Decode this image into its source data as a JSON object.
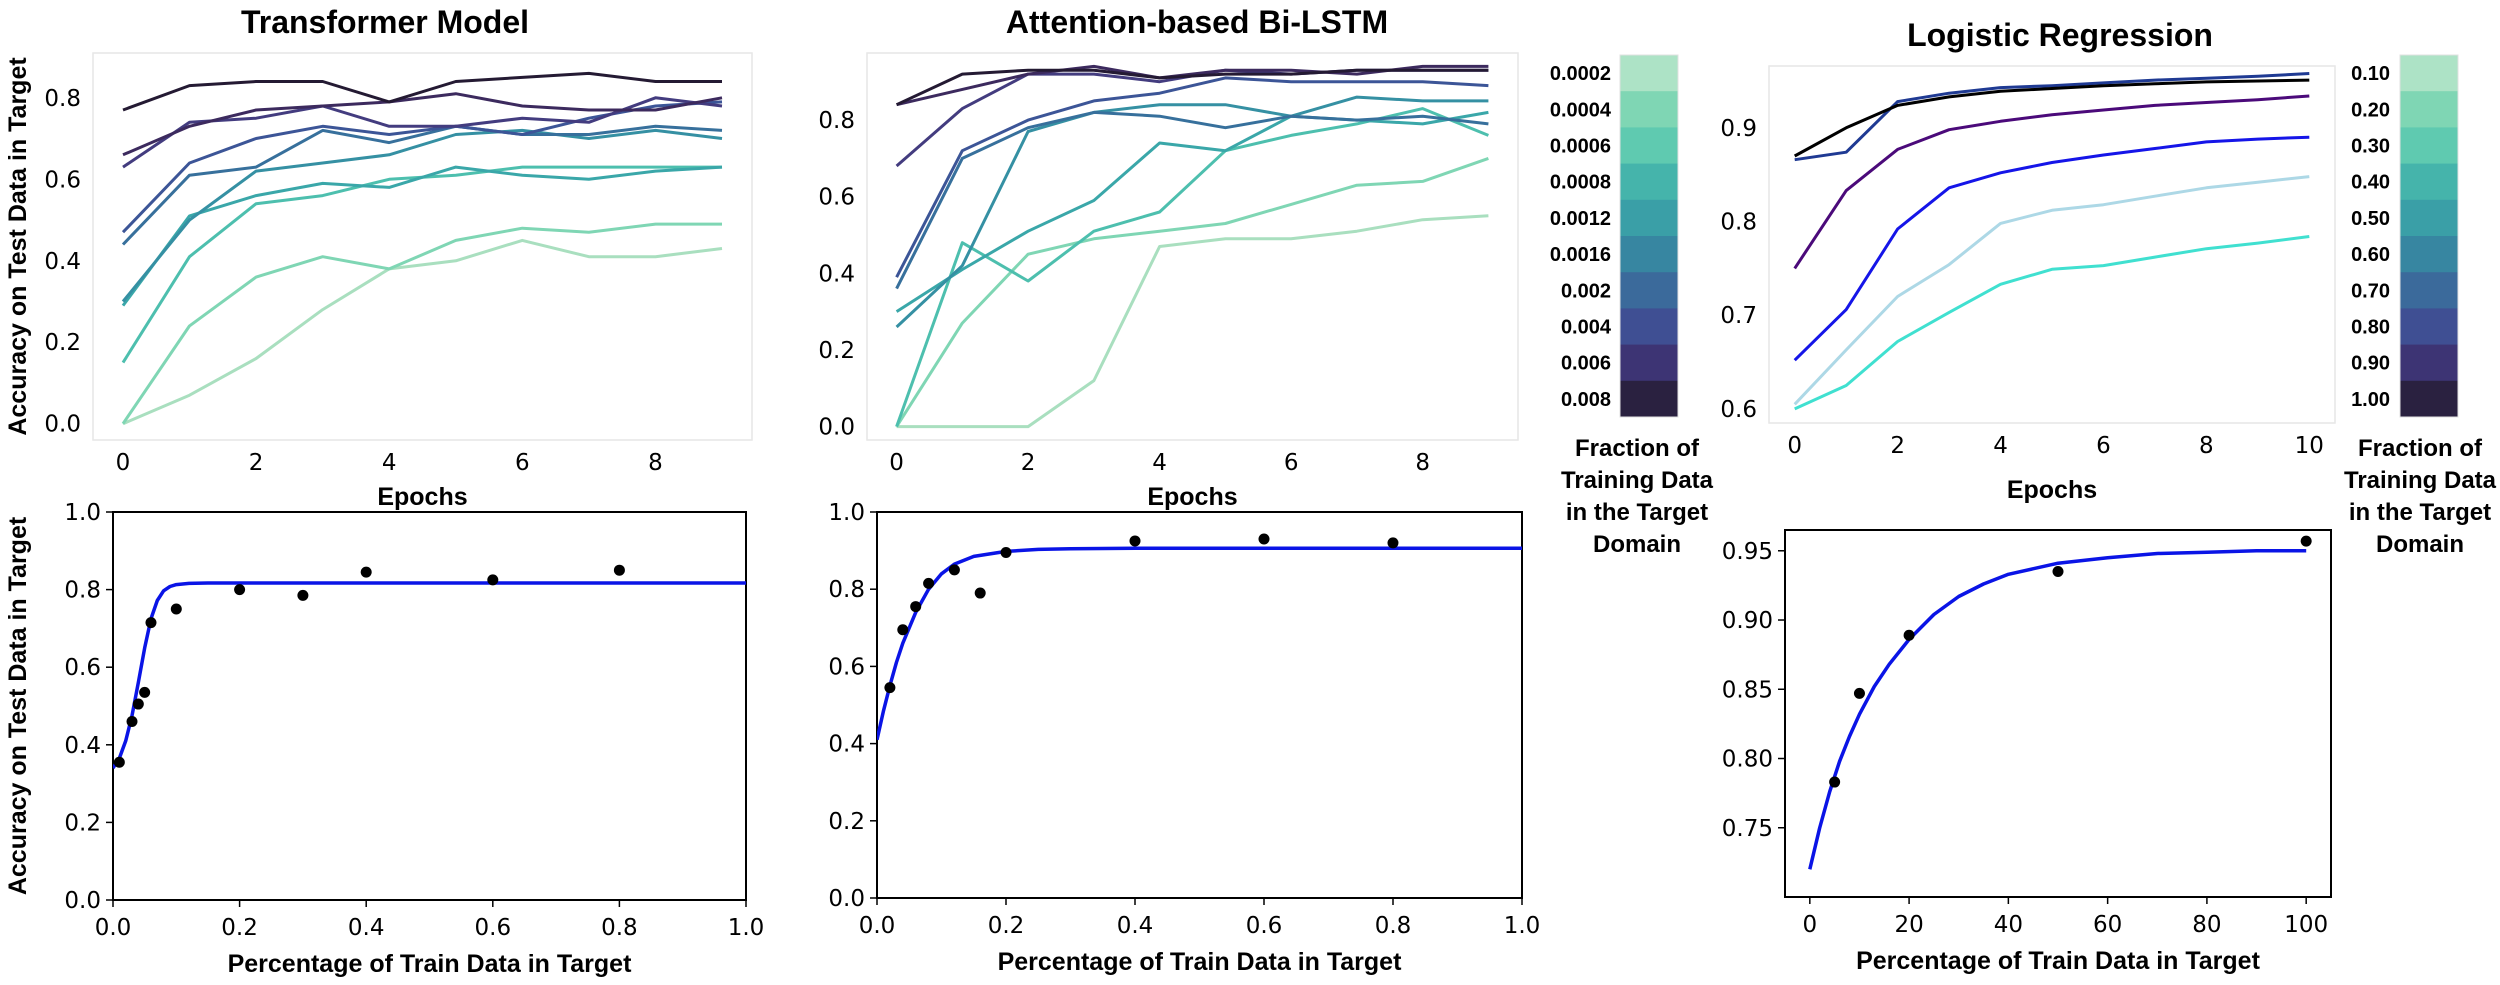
{
  "chart_data": [
    {
      "id": "p1",
      "type": "line",
      "title": "Transformer Model",
      "xlabel": "Epochs",
      "ylabel": "Accuracy on Test Data in Target",
      "xlim": [
        -0.45,
        9.45
      ],
      "ylim": [
        -0.04,
        0.91
      ],
      "xticks": [
        0,
        2,
        4,
        6,
        8
      ],
      "yticks": [
        0.0,
        0.2,
        0.4,
        0.6,
        0.8
      ],
      "ytick_labels": [
        "0.0",
        "0.2",
        "0.4",
        "0.6",
        "0.8"
      ],
      "x": [
        0,
        1,
        2,
        3,
        4,
        5,
        6,
        7,
        8,
        9
      ],
      "series": [
        {
          "values": [
            0.0,
            0.07,
            0.16,
            0.28,
            0.38,
            0.4,
            0.45,
            0.41,
            0.41,
            0.43
          ],
          "color": "#a9dfbf"
        },
        {
          "values": [
            0.0,
            0.24,
            0.36,
            0.41,
            0.38,
            0.45,
            0.48,
            0.47,
            0.49,
            0.49
          ],
          "color": "#7fd6b4"
        },
        {
          "values": [
            0.15,
            0.41,
            0.54,
            0.56,
            0.6,
            0.61,
            0.63,
            0.63,
            0.63,
            0.63
          ],
          "color": "#4dbfae"
        },
        {
          "values": [
            0.29,
            0.51,
            0.56,
            0.59,
            0.58,
            0.63,
            0.61,
            0.6,
            0.62,
            0.63
          ],
          "color": "#3aa7a9"
        },
        {
          "values": [
            0.3,
            0.5,
            0.62,
            0.64,
            0.66,
            0.71,
            0.72,
            0.7,
            0.72,
            0.7
          ],
          "color": "#3590a3"
        },
        {
          "values": [
            0.44,
            0.61,
            0.63,
            0.72,
            0.69,
            0.73,
            0.71,
            0.71,
            0.73,
            0.72
          ],
          "color": "#37709c"
        },
        {
          "values": [
            0.47,
            0.64,
            0.7,
            0.73,
            0.71,
            0.73,
            0.71,
            0.75,
            0.78,
            0.79
          ],
          "color": "#3c5597"
        },
        {
          "values": [
            0.63,
            0.74,
            0.75,
            0.78,
            0.73,
            0.73,
            0.75,
            0.74,
            0.8,
            0.78
          ],
          "color": "#433c7f"
        },
        {
          "values": [
            0.66,
            0.73,
            0.77,
            0.78,
            0.79,
            0.81,
            0.78,
            0.77,
            0.77,
            0.8
          ],
          "color": "#3c2a5e"
        },
        {
          "values": [
            0.77,
            0.83,
            0.84,
            0.84,
            0.79,
            0.84,
            0.85,
            0.86,
            0.84,
            0.84
          ],
          "color": "#241a33"
        }
      ]
    },
    {
      "id": "p2",
      "type": "line",
      "title": "Attention-based Bi-LSTM",
      "xlabel": "Epochs",
      "ylabel": "",
      "xlim": [
        -0.45,
        9.45
      ],
      "ylim": [
        -0.035,
        0.975
      ],
      "xticks": [
        0,
        2,
        4,
        6,
        8
      ],
      "yticks": [
        0.0,
        0.2,
        0.4,
        0.6,
        0.8
      ],
      "ytick_labels": [
        "0.0",
        "0.2",
        "0.4",
        "0.6",
        "0.8"
      ],
      "x": [
        0,
        1,
        2,
        3,
        4,
        5,
        6,
        7,
        8,
        9
      ],
      "series": [
        {
          "values": [
            0.0,
            0.0,
            0.0,
            0.12,
            0.47,
            0.49,
            0.49,
            0.51,
            0.54,
            0.55
          ],
          "color": "#a9dfbf"
        },
        {
          "values": [
            0.0,
            0.27,
            0.45,
            0.49,
            0.51,
            0.53,
            0.58,
            0.63,
            0.64,
            0.7
          ],
          "color": "#7fd6b4"
        },
        {
          "values": [
            0.0,
            0.48,
            0.38,
            0.51,
            0.56,
            0.72,
            0.76,
            0.79,
            0.83,
            0.76
          ],
          "color": "#4dbfae"
        },
        {
          "values": [
            0.3,
            0.41,
            0.51,
            0.59,
            0.74,
            0.72,
            0.81,
            0.8,
            0.79,
            0.82
          ],
          "color": "#3aa7a9"
        },
        {
          "values": [
            0.26,
            0.42,
            0.77,
            0.82,
            0.84,
            0.84,
            0.81,
            0.86,
            0.85,
            0.85
          ],
          "color": "#3590a3"
        },
        {
          "values": [
            0.36,
            0.7,
            0.78,
            0.82,
            0.81,
            0.78,
            0.81,
            0.8,
            0.81,
            0.79
          ],
          "color": "#37709c"
        },
        {
          "values": [
            0.39,
            0.72,
            0.8,
            0.85,
            0.87,
            0.91,
            0.9,
            0.9,
            0.9,
            0.89
          ],
          "color": "#3c5597"
        },
        {
          "values": [
            0.68,
            0.83,
            0.92,
            0.92,
            0.9,
            0.93,
            0.92,
            0.93,
            0.93,
            0.93
          ],
          "color": "#433c7f"
        },
        {
          "values": [
            0.84,
            0.88,
            0.92,
            0.94,
            0.91,
            0.93,
            0.93,
            0.92,
            0.94,
            0.94
          ],
          "color": "#3c2a5e"
        },
        {
          "values": [
            0.84,
            0.92,
            0.93,
            0.93,
            0.91,
            0.92,
            0.92,
            0.93,
            0.93,
            0.93
          ],
          "color": "#241a33"
        }
      ]
    },
    {
      "id": "p3",
      "type": "line",
      "title": "Logistic Regression",
      "xlabel": "Epochs",
      "ylabel": "",
      "xlim": [
        -0.5,
        10.5
      ],
      "ylim": [
        0.585,
        0.966
      ],
      "xticks": [
        0,
        2,
        4,
        6,
        8,
        10
      ],
      "yticks": [
        0.6,
        0.7,
        0.8,
        0.9
      ],
      "ytick_labels": [
        "0.6",
        "0.7",
        "0.8",
        "0.9"
      ],
      "x": [
        0,
        1,
        2,
        3,
        4,
        5,
        6,
        7,
        8,
        9,
        10
      ],
      "series": [
        {
          "values": [
            0.6,
            0.625,
            0.672,
            0.703,
            0.733,
            0.749,
            0.753,
            0.762,
            0.771,
            0.777,
            0.784
          ],
          "color": "#40e0d0"
        },
        {
          "values": [
            0.605,
            0.663,
            0.72,
            0.754,
            0.798,
            0.812,
            0.818,
            0.827,
            0.836,
            0.842,
            0.848
          ],
          "color": "#add8e6"
        },
        {
          "values": [
            0.652,
            0.706,
            0.792,
            0.836,
            0.852,
            0.863,
            0.871,
            0.878,
            0.885,
            0.888,
            0.89
          ],
          "color": "#1515e8"
        },
        {
          "values": [
            0.75,
            0.833,
            0.877,
            0.898,
            0.907,
            0.914,
            0.919,
            0.924,
            0.927,
            0.93,
            0.934
          ],
          "color": "#4b0a7a"
        },
        {
          "values": [
            0.866,
            0.874,
            0.928,
            0.937,
            0.943,
            0.945,
            0.948,
            0.951,
            0.953,
            0.955,
            0.958
          ],
          "color": "#1f3a93"
        },
        {
          "values": [
            0.87,
            0.9,
            0.924,
            0.933,
            0.939,
            0.942,
            0.945,
            0.947,
            0.949,
            0.95,
            0.951
          ],
          "color": "#000000"
        }
      ]
    },
    {
      "id": "p4",
      "type": "scatter",
      "title": "",
      "xlabel": "Percentage of Train Data in Target",
      "ylabel": "Accuracy on Test Data in Target",
      "xlim": [
        0.0,
        1.0
      ],
      "ylim": [
        0.0,
        1.0
      ],
      "xticks": [
        0.0,
        0.2,
        0.4,
        0.6,
        0.8,
        1.0
      ],
      "xtick_labels": [
        "0.0",
        "0.2",
        "0.4",
        "0.6",
        "0.8",
        "1.0"
      ],
      "yticks": [
        0.0,
        0.2,
        0.4,
        0.6,
        0.8,
        1.0
      ],
      "ytick_labels": [
        "0.0",
        "0.2",
        "0.4",
        "0.6",
        "0.8",
        "1.0"
      ],
      "points": {
        "x": [
          0.01,
          0.03,
          0.04,
          0.05,
          0.06,
          0.1,
          0.2,
          0.3,
          0.4,
          0.6,
          0.8
        ],
        "y": [
          0.355,
          0.46,
          0.505,
          0.535,
          0.715,
          0.75,
          0.8,
          0.785,
          0.845,
          0.825,
          0.85
        ]
      },
      "fit": {
        "x": [
          0.0,
          0.01,
          0.02,
          0.03,
          0.04,
          0.05,
          0.06,
          0.07,
          0.08,
          0.09,
          0.1,
          0.12,
          0.15,
          0.2,
          0.3,
          0.5,
          0.7,
          1.0
        ],
        "y": [
          0.34,
          0.365,
          0.41,
          0.475,
          0.56,
          0.65,
          0.725,
          0.772,
          0.797,
          0.808,
          0.813,
          0.816,
          0.817,
          0.817,
          0.817,
          0.817,
          0.817,
          0.817
        ],
        "color": "#0a14e6"
      }
    },
    {
      "id": "p5",
      "type": "scatter",
      "title": "",
      "xlabel": "Percentage of Train Data in Target",
      "ylabel": "",
      "xlim": [
        0.0,
        1.0
      ],
      "ylim": [
        0.0,
        1.0
      ],
      "xticks": [
        0.0,
        0.2,
        0.4,
        0.6,
        0.8,
        1.0
      ],
      "xtick_labels": [
        "0.0",
        "0.2",
        "0.4",
        "0.6",
        "0.8",
        "1.0"
      ],
      "yticks": [
        0.0,
        0.2,
        0.4,
        0.6,
        0.8,
        1.0
      ],
      "ytick_labels": [
        "0.0",
        "0.2",
        "0.4",
        "0.6",
        "0.8",
        "1.0"
      ],
      "points": {
        "x": [
          0.02,
          0.04,
          0.06,
          0.08,
          0.12,
          0.16,
          0.2,
          0.4,
          0.6,
          0.8
        ],
        "y": [
          0.545,
          0.695,
          0.755,
          0.815,
          0.85,
          0.79,
          0.895,
          0.925,
          0.93,
          0.92
        ]
      },
      "fit": {
        "x": [
          0.0,
          0.01,
          0.02,
          0.03,
          0.04,
          0.06,
          0.08,
          0.1,
          0.12,
          0.15,
          0.2,
          0.25,
          0.3,
          0.4,
          0.6,
          0.8,
          1.0
        ],
        "y": [
          0.41,
          0.485,
          0.55,
          0.61,
          0.66,
          0.74,
          0.8,
          0.84,
          0.865,
          0.885,
          0.898,
          0.903,
          0.905,
          0.906,
          0.906,
          0.906,
          0.906
        ],
        "color": "#0a14e6"
      }
    },
    {
      "id": "p6",
      "type": "scatter",
      "title": "",
      "xlabel": "Percentage of Train Data in Target",
      "ylabel": "",
      "xlim": [
        -5,
        105
      ],
      "ylim": [
        0.7,
        0.965
      ],
      "xticks": [
        0,
        20,
        40,
        60,
        80,
        100
      ],
      "xtick_labels": [
        "0",
        "20",
        "40",
        "60",
        "80",
        "100"
      ],
      "yticks": [
        0.75,
        0.8,
        0.85,
        0.9,
        0.95
      ],
      "ytick_labels": [
        "0.75",
        "0.80",
        "0.85",
        "0.90",
        "0.95"
      ],
      "points": {
        "x": [
          5,
          10,
          20,
          50,
          100
        ],
        "y": [
          0.783,
          0.847,
          0.889,
          0.935,
          0.957
        ]
      },
      "fit": {
        "x": [
          0,
          2,
          4,
          6,
          8,
          10,
          13,
          16,
          20,
          25,
          30,
          35,
          40,
          50,
          60,
          70,
          80,
          90,
          100
        ],
        "y": [
          0.72,
          0.75,
          0.776,
          0.798,
          0.816,
          0.832,
          0.852,
          0.868,
          0.886,
          0.904,
          0.917,
          0.926,
          0.933,
          0.941,
          0.945,
          0.948,
          0.949,
          0.95,
          0.95
        ],
        "color": "#0a14e6"
      }
    }
  ],
  "colorbars": [
    {
      "id": "cb1",
      "labels": [
        "0.0002",
        "0.0004",
        "0.0006",
        "0.0008",
        "0.0012",
        "0.0016",
        "0.002",
        "0.004",
        "0.006",
        "0.008"
      ],
      "colors": [
        "#ade3c6",
        "#7fd6b4",
        "#5fcab0",
        "#45b4ab",
        "#3a9fa7",
        "#3786a1",
        "#3b6a9b",
        "#3f4f93",
        "#3d3474",
        "#2a2140"
      ],
      "title_lines": [
        "Fraction of",
        "Training Data",
        "in the Target",
        "Domain"
      ]
    },
    {
      "id": "cb2",
      "labels": [
        "0.10",
        "0.20",
        "0.30",
        "0.40",
        "0.50",
        "0.60",
        "0.70",
        "0.80",
        "0.90",
        "1.00"
      ],
      "colors": [
        "#ade3c6",
        "#7fd6b4",
        "#5fcab0",
        "#45b4ab",
        "#3a9fa7",
        "#3786a1",
        "#3b6a9b",
        "#3f4f93",
        "#3d3474",
        "#2a2140"
      ],
      "title_lines": [
        "Fraction of",
        "Training Data",
        "in the Target",
        "Domain"
      ]
    }
  ]
}
